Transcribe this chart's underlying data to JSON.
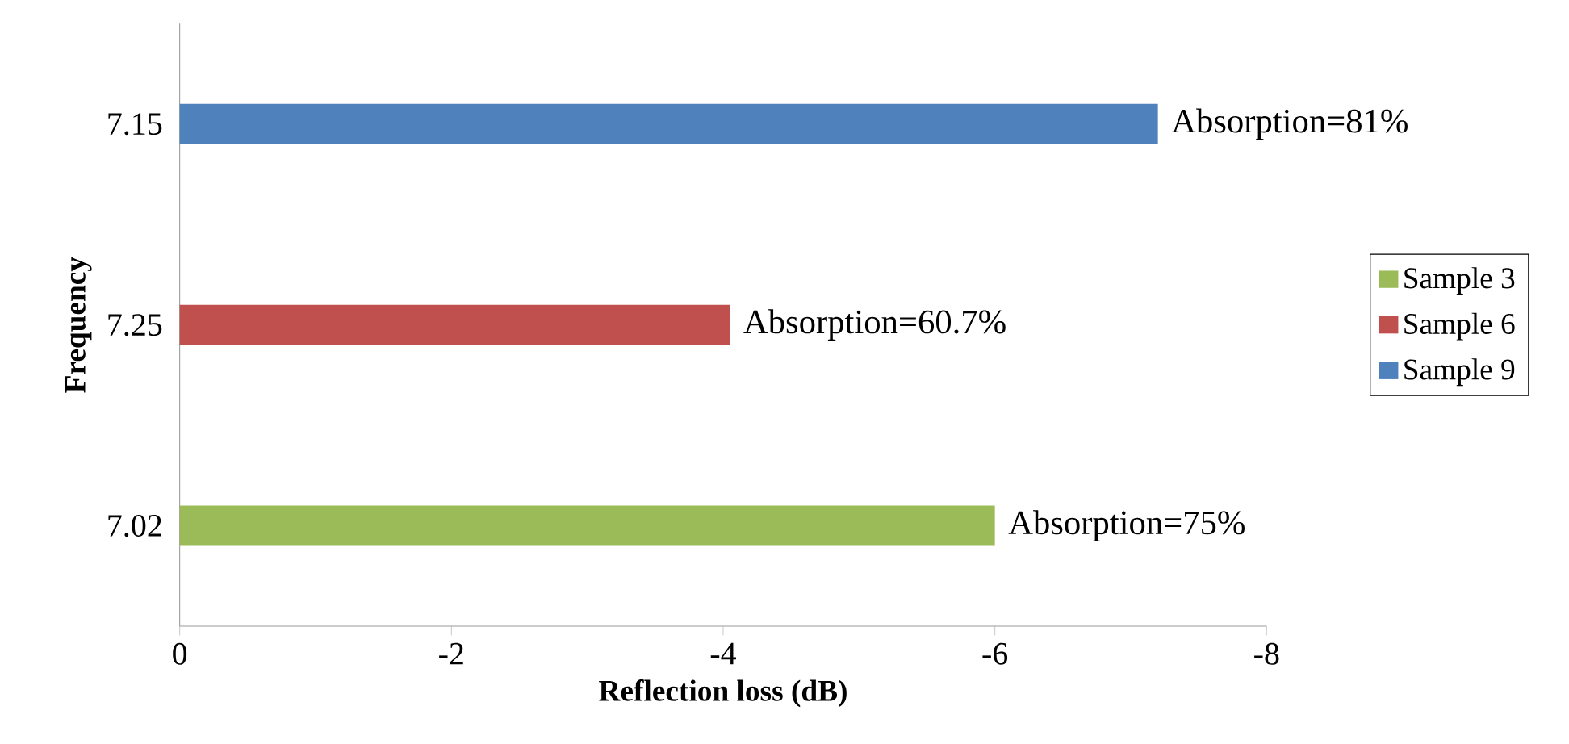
{
  "chart_data": {
    "type": "bar",
    "orientation": "horizontal",
    "xlabel": "Reflection loss (dB)",
    "ylabel": "Frequency",
    "categories": [
      "7.15",
      "7.25",
      "7.02"
    ],
    "series": [
      {
        "name": "Sample 3",
        "color": "#9bbb59",
        "values": [
          null,
          null,
          -6.0
        ]
      },
      {
        "name": "Sample 6",
        "color": "#c0504d",
        "values": [
          null,
          -4.05,
          null
        ]
      },
      {
        "name": "Sample 9",
        "color": "#4f81bd",
        "values": [
          -7.2,
          null,
          null
        ]
      }
    ],
    "xlim": [
      0,
      -8
    ],
    "xticks": [
      0,
      -2,
      -4,
      -6,
      -8
    ],
    "legend": "right",
    "annotations": [
      {
        "text": "Absorption=81%",
        "x": -7.2,
        "y": "7.15"
      },
      {
        "text": "Absorption=60.7%",
        "x": -4.05,
        "y": "7.25"
      },
      {
        "text": "Absorption=75%",
        "x": -6.0,
        "y": "7.02"
      }
    ]
  }
}
